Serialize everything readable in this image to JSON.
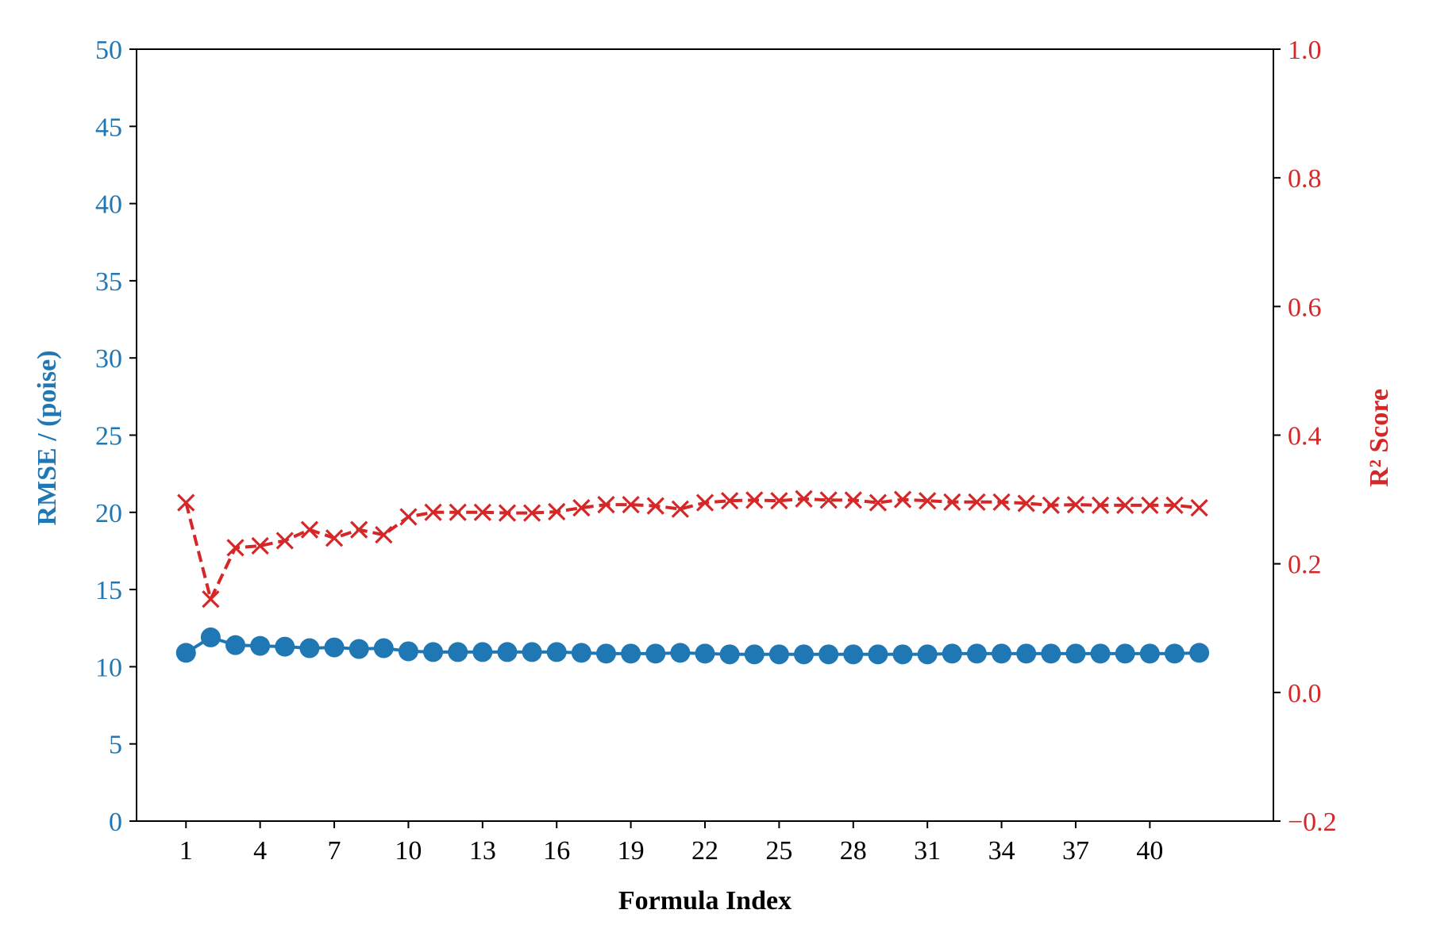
{
  "colors": {
    "left": "#1f77b4",
    "right": "#d62728",
    "axis": "#000000"
  },
  "chart_data": {
    "type": "line",
    "xlabel": "Formula Index",
    "x_ticks": [
      1,
      4,
      7,
      10,
      13,
      16,
      19,
      22,
      25,
      28,
      31,
      34,
      37,
      40
    ],
    "xlim": [
      -1,
      45
    ],
    "x": [
      1,
      2,
      3,
      4,
      5,
      6,
      7,
      8,
      9,
      10,
      11,
      12,
      13,
      14,
      15,
      16,
      17,
      18,
      19,
      20,
      21,
      22,
      23,
      24,
      25,
      26,
      27,
      28,
      29,
      30,
      31,
      32,
      33,
      34,
      35,
      36,
      37,
      38,
      39,
      40,
      41,
      42
    ],
    "left_axis": {
      "label": "RMSE / (poise)",
      "ylim": [
        0,
        50
      ],
      "ticks": [
        0,
        5,
        10,
        15,
        20,
        25,
        30,
        35,
        40,
        45,
        50
      ]
    },
    "right_axis": {
      "label": "R² Score",
      "ylim": [
        -0.2,
        1.0
      ],
      "ticks": [
        -0.2,
        0.0,
        0.2,
        0.4,
        0.6,
        0.8,
        1.0
      ],
      "tick_labels": [
        "−0.2",
        "0.0",
        "0.2",
        "0.4",
        "0.6",
        "0.8",
        "1.0"
      ]
    },
    "series": [
      {
        "axis": "left",
        "marker": "circle",
        "line": "solid",
        "values": [
          10.9,
          11.9,
          11.4,
          11.35,
          11.3,
          11.2,
          11.25,
          11.15,
          11.2,
          11.0,
          10.95,
          10.95,
          10.95,
          10.95,
          10.95,
          10.95,
          10.9,
          10.85,
          10.85,
          10.85,
          10.9,
          10.85,
          10.8,
          10.8,
          10.8,
          10.8,
          10.8,
          10.8,
          10.8,
          10.8,
          10.8,
          10.85,
          10.85,
          10.85,
          10.85,
          10.85,
          10.85,
          10.85,
          10.85,
          10.85,
          10.85,
          10.9
        ]
      },
      {
        "axis": "right",
        "marker": "x",
        "line": "dashed",
        "values": [
          0.295,
          0.145,
          0.225,
          0.228,
          0.236,
          0.253,
          0.24,
          0.253,
          0.245,
          0.273,
          0.28,
          0.28,
          0.28,
          0.279,
          0.279,
          0.281,
          0.287,
          0.292,
          0.292,
          0.29,
          0.285,
          0.295,
          0.298,
          0.299,
          0.298,
          0.301,
          0.299,
          0.299,
          0.295,
          0.3,
          0.298,
          0.296,
          0.296,
          0.296,
          0.294,
          0.291,
          0.292,
          0.291,
          0.291,
          0.291,
          0.291,
          0.287
        ]
      }
    ]
  }
}
